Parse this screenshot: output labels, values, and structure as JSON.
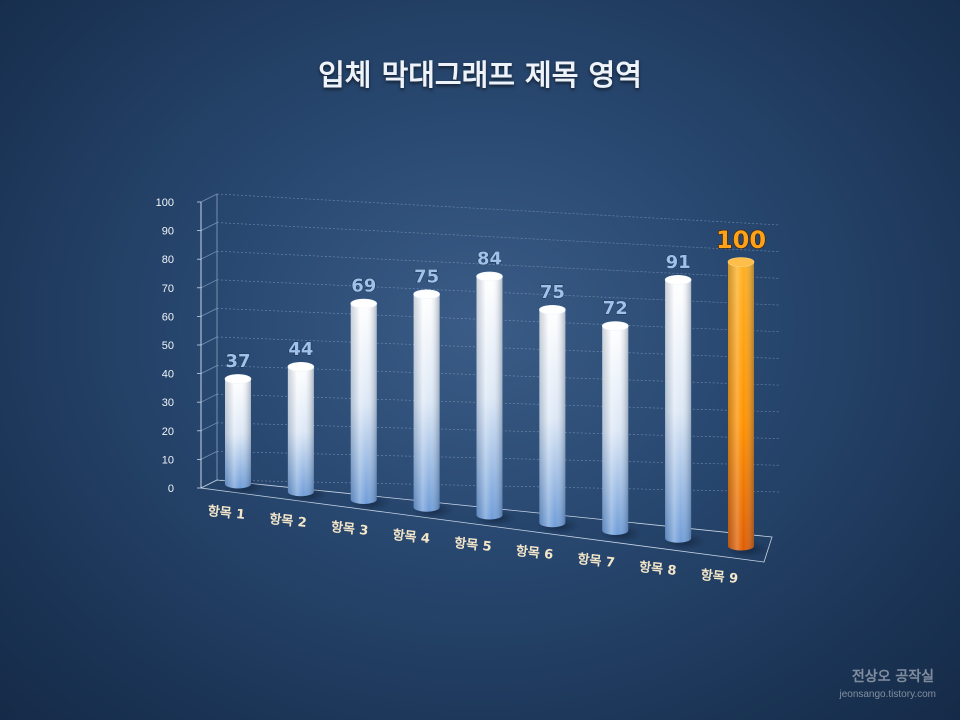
{
  "chart_data": {
    "type": "bar",
    "title": "입체 막대그래프 제목 영역",
    "categories": [
      "항목 1",
      "항목 2",
      "항목 3",
      "항목 4",
      "항목 5",
      "항목 6",
      "항목 7",
      "항목 8",
      "항목 9"
    ],
    "values": [
      37,
      44,
      69,
      75,
      84,
      75,
      72,
      91,
      100
    ],
    "ylim": [
      0,
      100
    ],
    "yticks": [
      0,
      10,
      20,
      30,
      40,
      50,
      60,
      70,
      80,
      90,
      100
    ],
    "grid": true,
    "style": "3d-cylinder",
    "colors": {
      "default": "#8fb2df",
      "highlight": "#ff8c00"
    },
    "highlight_index": 8
  },
  "watermark": {
    "name": "전상오 공작실",
    "url": "jeonsango.tistory.com"
  }
}
